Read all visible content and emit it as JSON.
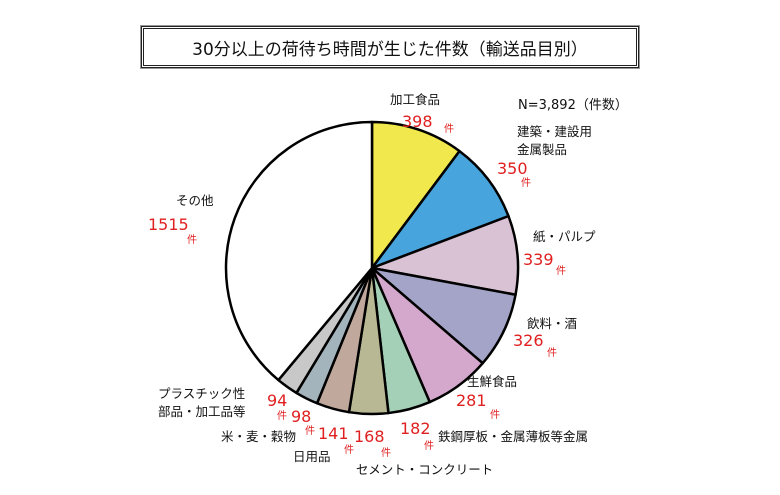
{
  "chart_data": {
    "type": "pie",
    "title": "30分以上の荷待ち時間が生じた件数（輸送品目別）",
    "note": "N=3,892（件数）",
    "unit": "件",
    "start": "top",
    "direction": "clockwise",
    "slices": [
      {
        "label": [
          "加工食品"
        ],
        "value": 398,
        "value_text": "398",
        "color": "#f0e84c"
      },
      {
        "label": [
          "建築・建設用",
          "金属製品"
        ],
        "value": 350,
        "value_text": "350",
        "color": "#48a4dc"
      },
      {
        "label": [
          "紙・パルプ"
        ],
        "value": 339,
        "value_text": "339",
        "color": "#d8c2d4"
      },
      {
        "label": [
          "飲料・酒"
        ],
        "value": 326,
        "value_text": "326",
        "color": "#a4a4c8"
      },
      {
        "label": [
          "生鮮食品"
        ],
        "value": 281,
        "value_text": "281",
        "color": "#d4a8cc"
      },
      {
        "label": [
          "鉄鋼厚板・金属薄板等金属"
        ],
        "value": 182,
        "value_text": "182",
        "color": "#a4d0b8"
      },
      {
        "label": [
          "セメント・コンクリート"
        ],
        "value": 168,
        "value_text": "168",
        "color": "#b8b894"
      },
      {
        "label": [
          "日用品"
        ],
        "value": 141,
        "value_text": "141",
        "color": "#c0a89c"
      },
      {
        "label": [
          "米・麦・穀物"
        ],
        "value": 98,
        "value_text": "98",
        "color": "#a4b4bc"
      },
      {
        "label": [
          "プラスチック性",
          "部品・加工品等"
        ],
        "value": 94,
        "value_text": "94",
        "color": "#c8c8c8"
      },
      {
        "label": [
          "その他"
        ],
        "value": 1515,
        "value_text": "1515",
        "color": "#ffffff"
      }
    ]
  }
}
